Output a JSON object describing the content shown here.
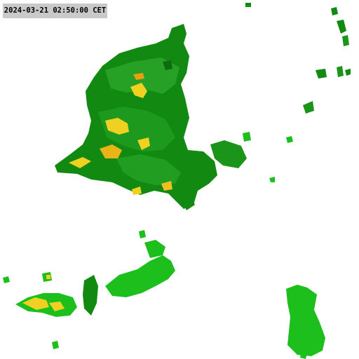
{
  "overlay": {
    "timestamp": "2024-03-21 02:50:00 CET"
  },
  "colors": {
    "background": "#ffffff",
    "label_background": "#c9c9c9",
    "precip_dark_green": "#128a12",
    "precip_mid_green": "#24a424",
    "precip_light_green": "#1cbf1c",
    "precip_yellow": "#f0d020",
    "precip_orange": "#e8a010"
  },
  "layers": [
    "precipitation-radar"
  ]
}
